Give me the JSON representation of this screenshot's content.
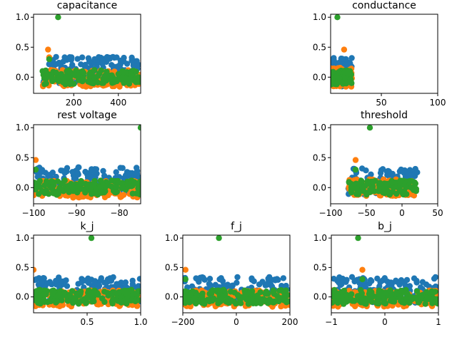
{
  "colors": {
    "series1": "#1f77b4",
    "series2": "#ff7f0e",
    "series3": "#2ca02c"
  },
  "chart_data": [
    {
      "type": "scatter",
      "title": "capacitance",
      "xlim": [
        20,
        500
      ],
      "ylim": [
        -0.27,
        1.05
      ],
      "xticks": [
        200,
        400
      ],
      "xtick_labels": [
        "200",
        "400"
      ],
      "yticks": [
        0.0,
        0.5,
        1.0
      ],
      "ytick_labels": [
        "0.0",
        "0.5",
        "1.0"
      ],
      "grid": false,
      "series": [
        {
          "color": "series1",
          "x_range": [
            60,
            500
          ],
          "y_center": 0.12,
          "y_spread": 0.22,
          "n": 140,
          "points": []
        },
        {
          "color": "series2",
          "x_range": [
            60,
            500
          ],
          "y_center": -0.02,
          "y_spread": 0.14,
          "n": 140,
          "points": [
            [
              85,
              0.46
            ],
            [
              90,
              0.33
            ]
          ]
        },
        {
          "color": "series3",
          "x_range": [
            60,
            500
          ],
          "y_center": 0.0,
          "y_spread": 0.12,
          "n": 140,
          "points": [
            [
              130,
              1.0
            ],
            [
              90,
              0.3
            ]
          ]
        }
      ]
    },
    {
      "type": "scatter",
      "title": "conductance",
      "xlim": [
        5,
        100
      ],
      "ylim": [
        -0.27,
        1.05
      ],
      "xticks": [
        50,
        100
      ],
      "xtick_labels": [
        "50",
        "100"
      ],
      "yticks": [
        0.0,
        0.5,
        1.0
      ],
      "ytick_labels": [
        "0.0",
        "0.5",
        "1.0"
      ],
      "grid": false,
      "series": [
        {
          "color": "series1",
          "x_range": [
            5,
            24
          ],
          "y_center": 0.08,
          "y_spread": 0.24,
          "n": 90,
          "points": []
        },
        {
          "color": "series2",
          "x_range": [
            5,
            24
          ],
          "y_center": 0.0,
          "y_spread": 0.16,
          "n": 90,
          "points": [
            [
              17,
              0.46
            ]
          ]
        },
        {
          "color": "series3",
          "x_range": [
            5,
            24
          ],
          "y_center": 0.0,
          "y_spread": 0.12,
          "n": 90,
          "points": [
            [
              11,
              1.0
            ]
          ]
        }
      ]
    },
    {
      "type": "scatter",
      "title": "rest voltage",
      "xlim": [
        -100,
        -75
      ],
      "ylim": [
        -0.27,
        1.05
      ],
      "xticks": [
        -100,
        -90,
        -80
      ],
      "xtick_labels": [
        "−100",
        "−90",
        "−80"
      ],
      "yticks": [
        0.0,
        0.5,
        1.0
      ],
      "ytick_labels": [
        "0.0",
        "0.5",
        "1.0"
      ],
      "grid": false,
      "series": [
        {
          "color": "series1",
          "x_range": [
            -100,
            -75
          ],
          "y_center": 0.12,
          "y_spread": 0.22,
          "n": 150,
          "points": []
        },
        {
          "color": "series2",
          "x_range": [
            -100,
            -75
          ],
          "y_center": -0.03,
          "y_spread": 0.14,
          "n": 150,
          "points": [
            [
              -99.5,
              0.46
            ]
          ]
        },
        {
          "color": "series3",
          "x_range": [
            -100,
            -75
          ],
          "y_center": 0.0,
          "y_spread": 0.12,
          "n": 150,
          "points": [
            [
              -75,
              1.0
            ],
            [
              -99.5,
              0.3
            ]
          ]
        }
      ]
    },
    {
      "type": "scatter",
      "title": "threshold",
      "xlim": [
        -100,
        50
      ],
      "ylim": [
        -0.27,
        1.05
      ],
      "xticks": [
        -100,
        -50,
        0,
        50
      ],
      "xtick_labels": [
        "−100",
        "−50",
        "0",
        "50"
      ],
      "yticks": [
        0.0,
        0.5,
        1.0
      ],
      "ytick_labels": [
        "0.0",
        "0.5",
        "1.0"
      ],
      "grid": false,
      "series": [
        {
          "color": "series1",
          "x_range": [
            -75,
            22
          ],
          "y_center": 0.1,
          "y_spread": 0.22,
          "n": 120,
          "points": []
        },
        {
          "color": "series2",
          "x_range": [
            -75,
            22
          ],
          "y_center": 0.0,
          "y_spread": 0.14,
          "n": 120,
          "points": [
            [
              -65,
              0.46
            ]
          ]
        },
        {
          "color": "series3",
          "x_range": [
            -75,
            22
          ],
          "y_center": 0.0,
          "y_spread": 0.12,
          "n": 120,
          "points": [
            [
              -45,
              1.0
            ],
            [
              -65,
              0.3
            ]
          ]
        }
      ]
    },
    {
      "type": "scatter",
      "title": "k_j",
      "xlim": [
        0,
        1
      ],
      "ylim": [
        -0.27,
        1.05
      ],
      "xticks": [
        0.5,
        1.0
      ],
      "xtick_labels": [
        "0.5",
        "1.0"
      ],
      "yticks": [
        0.0,
        0.5,
        1.0
      ],
      "ytick_labels": [
        "0.0",
        "0.5",
        "1.0"
      ],
      "grid": false,
      "series": [
        {
          "color": "series1",
          "x_range": [
            0,
            1
          ],
          "y_center": 0.12,
          "y_spread": 0.22,
          "n": 150,
          "points": []
        },
        {
          "color": "series2",
          "x_range": [
            0,
            1
          ],
          "y_center": -0.03,
          "y_spread": 0.14,
          "n": 150,
          "points": [
            [
              0.0,
              0.46
            ]
          ]
        },
        {
          "color": "series3",
          "x_range": [
            0,
            1
          ],
          "y_center": 0.0,
          "y_spread": 0.12,
          "n": 150,
          "points": [
            [
              0.54,
              1.0
            ]
          ]
        }
      ]
    },
    {
      "type": "scatter",
      "title": "f_j",
      "xlim": [
        -200,
        200
      ],
      "ylim": [
        -0.27,
        1.05
      ],
      "xticks": [
        -200,
        0,
        200
      ],
      "xtick_labels": [
        "−200",
        "0",
        "200"
      ],
      "yticks": [
        0.0,
        0.5,
        1.0
      ],
      "ytick_labels": [
        "0.0",
        "0.5",
        "1.0"
      ],
      "grid": false,
      "series": [
        {
          "color": "series1",
          "x_range": [
            -200,
            200
          ],
          "y_center": 0.12,
          "y_spread": 0.22,
          "n": 150,
          "points": []
        },
        {
          "color": "series2",
          "x_range": [
            -200,
            200
          ],
          "y_center": -0.03,
          "y_spread": 0.14,
          "n": 150,
          "points": [
            [
              -190,
              0.46
            ]
          ]
        },
        {
          "color": "series3",
          "x_range": [
            -200,
            200
          ],
          "y_center": 0.0,
          "y_spread": 0.12,
          "n": 150,
          "points": [
            [
              -65,
              1.0
            ],
            [
              -190,
              0.3
            ]
          ]
        }
      ]
    },
    {
      "type": "scatter",
      "title": "b_j",
      "xlim": [
        -1,
        1
      ],
      "ylim": [
        -0.27,
        1.05
      ],
      "xticks": [
        -1,
        0,
        1
      ],
      "xtick_labels": [
        "−1",
        "0",
        "1"
      ],
      "yticks": [
        0.0,
        0.5,
        1.0
      ],
      "ytick_labels": [
        "0.0",
        "0.5",
        "1.0"
      ],
      "grid": false,
      "series": [
        {
          "color": "series1",
          "x_range": [
            -1,
            1
          ],
          "y_center": 0.12,
          "y_spread": 0.22,
          "n": 150,
          "points": []
        },
        {
          "color": "series2",
          "x_range": [
            -1,
            1
          ],
          "y_center": -0.03,
          "y_spread": 0.14,
          "n": 150,
          "points": [
            [
              -0.42,
              0.46
            ]
          ]
        },
        {
          "color": "series3",
          "x_range": [
            -1,
            1
          ],
          "y_center": 0.0,
          "y_spread": 0.12,
          "n": 150,
          "points": [
            [
              -0.5,
              1.0
            ],
            [
              -0.42,
              0.3
            ]
          ]
        }
      ]
    }
  ]
}
